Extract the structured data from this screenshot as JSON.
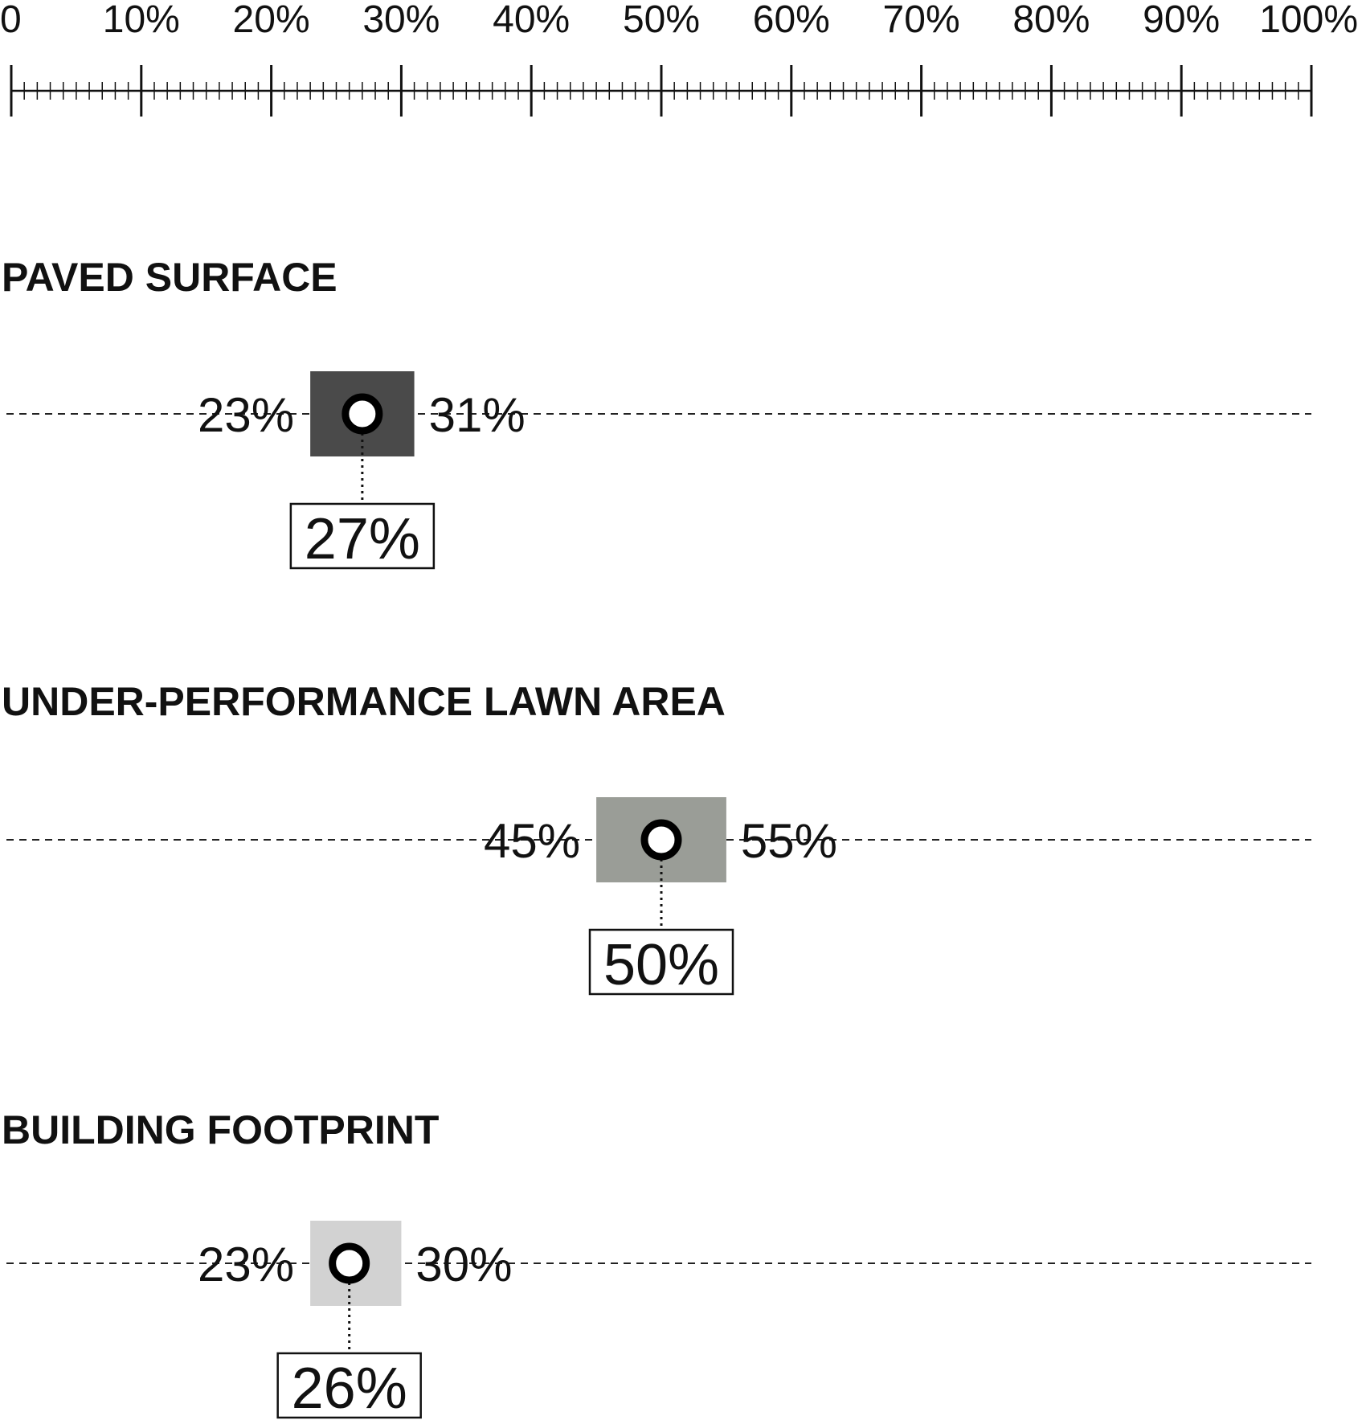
{
  "chart_data": {
    "type": "range-dot",
    "x_axis": {
      "min": 0,
      "max": 100,
      "unit": "%",
      "tick_labels": [
        "0",
        "10%",
        "20%",
        "30%",
        "40%",
        "50%",
        "60%",
        "70%",
        "80%",
        "90%",
        "100%"
      ],
      "major_step": 10,
      "minor_step": 1
    },
    "grid": false,
    "series": [
      {
        "category": "PAVED SURFACE",
        "low": 23,
        "high": 31,
        "median": 27,
        "low_label": "23%",
        "high_label": "31%",
        "median_label": "27%",
        "box_color": "#4a4a4a"
      },
      {
        "category": "UNDER-PERFORMANCE LAWN AREA",
        "low": 45,
        "high": 55,
        "median": 50,
        "low_label": "45%",
        "high_label": "55%",
        "median_label": "50%",
        "box_color": "#9a9d97"
      },
      {
        "category": "BUILDING FOOTPRINT",
        "low": 23,
        "high": 30,
        "median": 26,
        "low_label": "23%",
        "high_label": "30%",
        "median_label": "26%",
        "box_color": "#d2d2d2"
      }
    ]
  }
}
